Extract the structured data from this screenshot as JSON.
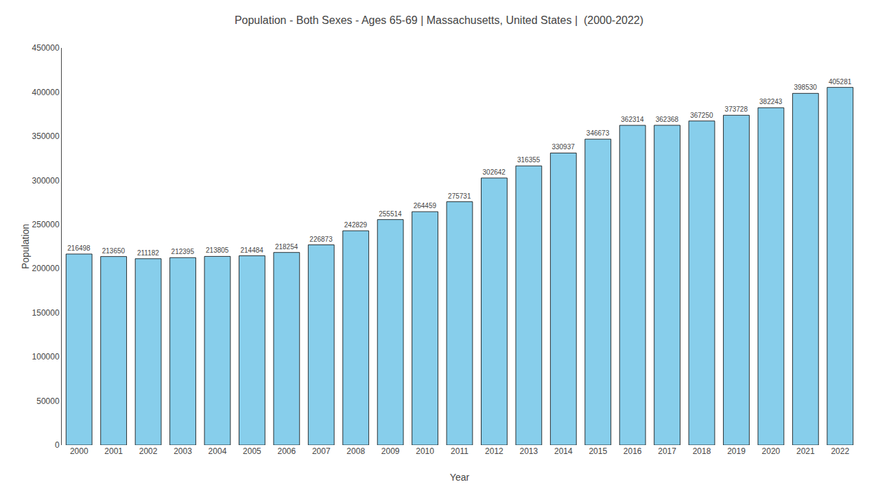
{
  "chart_data": {
    "type": "bar",
    "title": "Population - Both Sexes - Ages 65-69 | Massachusetts, United States |  (2000-2022)",
    "x_label": "Year",
    "y_label": "Population",
    "categories": [
      "2000",
      "2001",
      "2002",
      "2003",
      "2004",
      "2005",
      "2006",
      "2007",
      "2008",
      "2009",
      "2010",
      "2011",
      "2012",
      "2013",
      "2014",
      "2015",
      "2016",
      "2017",
      "2018",
      "2019",
      "2020",
      "2021",
      "2022"
    ],
    "values": [
      216498,
      213650,
      211182,
      212395,
      213805,
      214484,
      218254,
      226873,
      242829,
      255514,
      264459,
      275731,
      302642,
      316355,
      330937,
      346673,
      362314,
      362368,
      367250,
      373728,
      382243,
      398530,
      405281
    ],
    "color": "#87CEEB",
    "ylim": [
      0,
      450000
    ],
    "yticks": [
      0,
      50000,
      100000,
      150000,
      200000,
      250000,
      300000,
      350000,
      400000,
      450000
    ],
    "grid": false,
    "data_labels": true
  }
}
